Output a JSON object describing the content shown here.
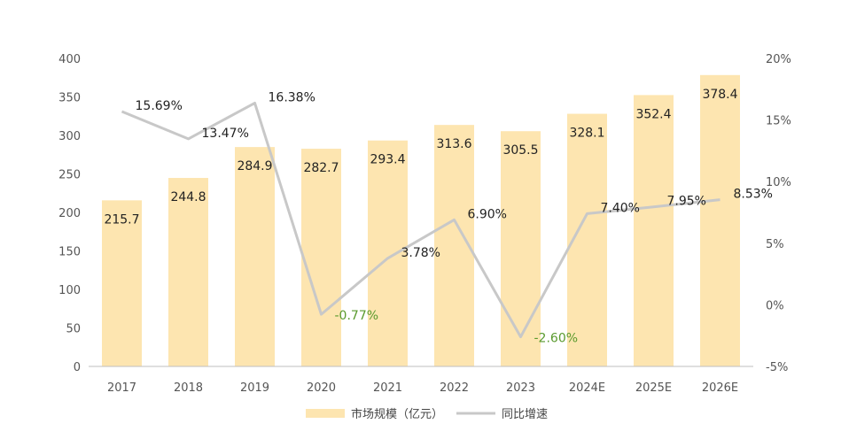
{
  "chart_data": {
    "type": "bar",
    "categories": [
      "2017",
      "2018",
      "2019",
      "2020",
      "2021",
      "2022",
      "2023",
      "2024E",
      "2025E",
      "2026E"
    ],
    "series": [
      {
        "name": "市场规模（亿元）",
        "type": "bar",
        "axis": "left",
        "values": [
          215.7,
          244.8,
          284.9,
          282.7,
          293.4,
          313.6,
          305.5,
          328.1,
          352.4,
          378.4
        ],
        "color": "#FDE5B0"
      },
      {
        "name": "同比增速",
        "type": "line",
        "axis": "right",
        "values": [
          15.69,
          13.47,
          16.38,
          -0.77,
          3.78,
          6.9,
          -2.6,
          7.4,
          7.95,
          8.53
        ],
        "color": "#C8C8C8"
      }
    ],
    "bar_labels": [
      "215.7",
      "244.8",
      "284.9",
      "282.7",
      "293.4",
      "313.6",
      "305.5",
      "328.1",
      "352.4",
      "378.4"
    ],
    "rate_labels": [
      "15.69%",
      "13.47%",
      "16.38%",
      "-0.77%",
      "3.78%",
      "6.90%",
      "-2.60%",
      "7.40%",
      "7.95%",
      "8.53%"
    ],
    "y_left": {
      "ylim": [
        0,
        400
      ],
      "ticks": [
        "0",
        "50",
        "100",
        "150",
        "200",
        "250",
        "300",
        "350",
        "400"
      ]
    },
    "y_right": {
      "ylim": [
        -5,
        20
      ],
      "ticks": [
        "-5%",
        "0%",
        "5%",
        "10%",
        "15%",
        "20%"
      ]
    },
    "negative_label_color": "#5A9A2E",
    "positive_label_color": "#222222",
    "grid": false,
    "legend": {
      "position": "bottom-center",
      "items": [
        "市场规模（亿元）",
        "同比增速"
      ]
    }
  }
}
